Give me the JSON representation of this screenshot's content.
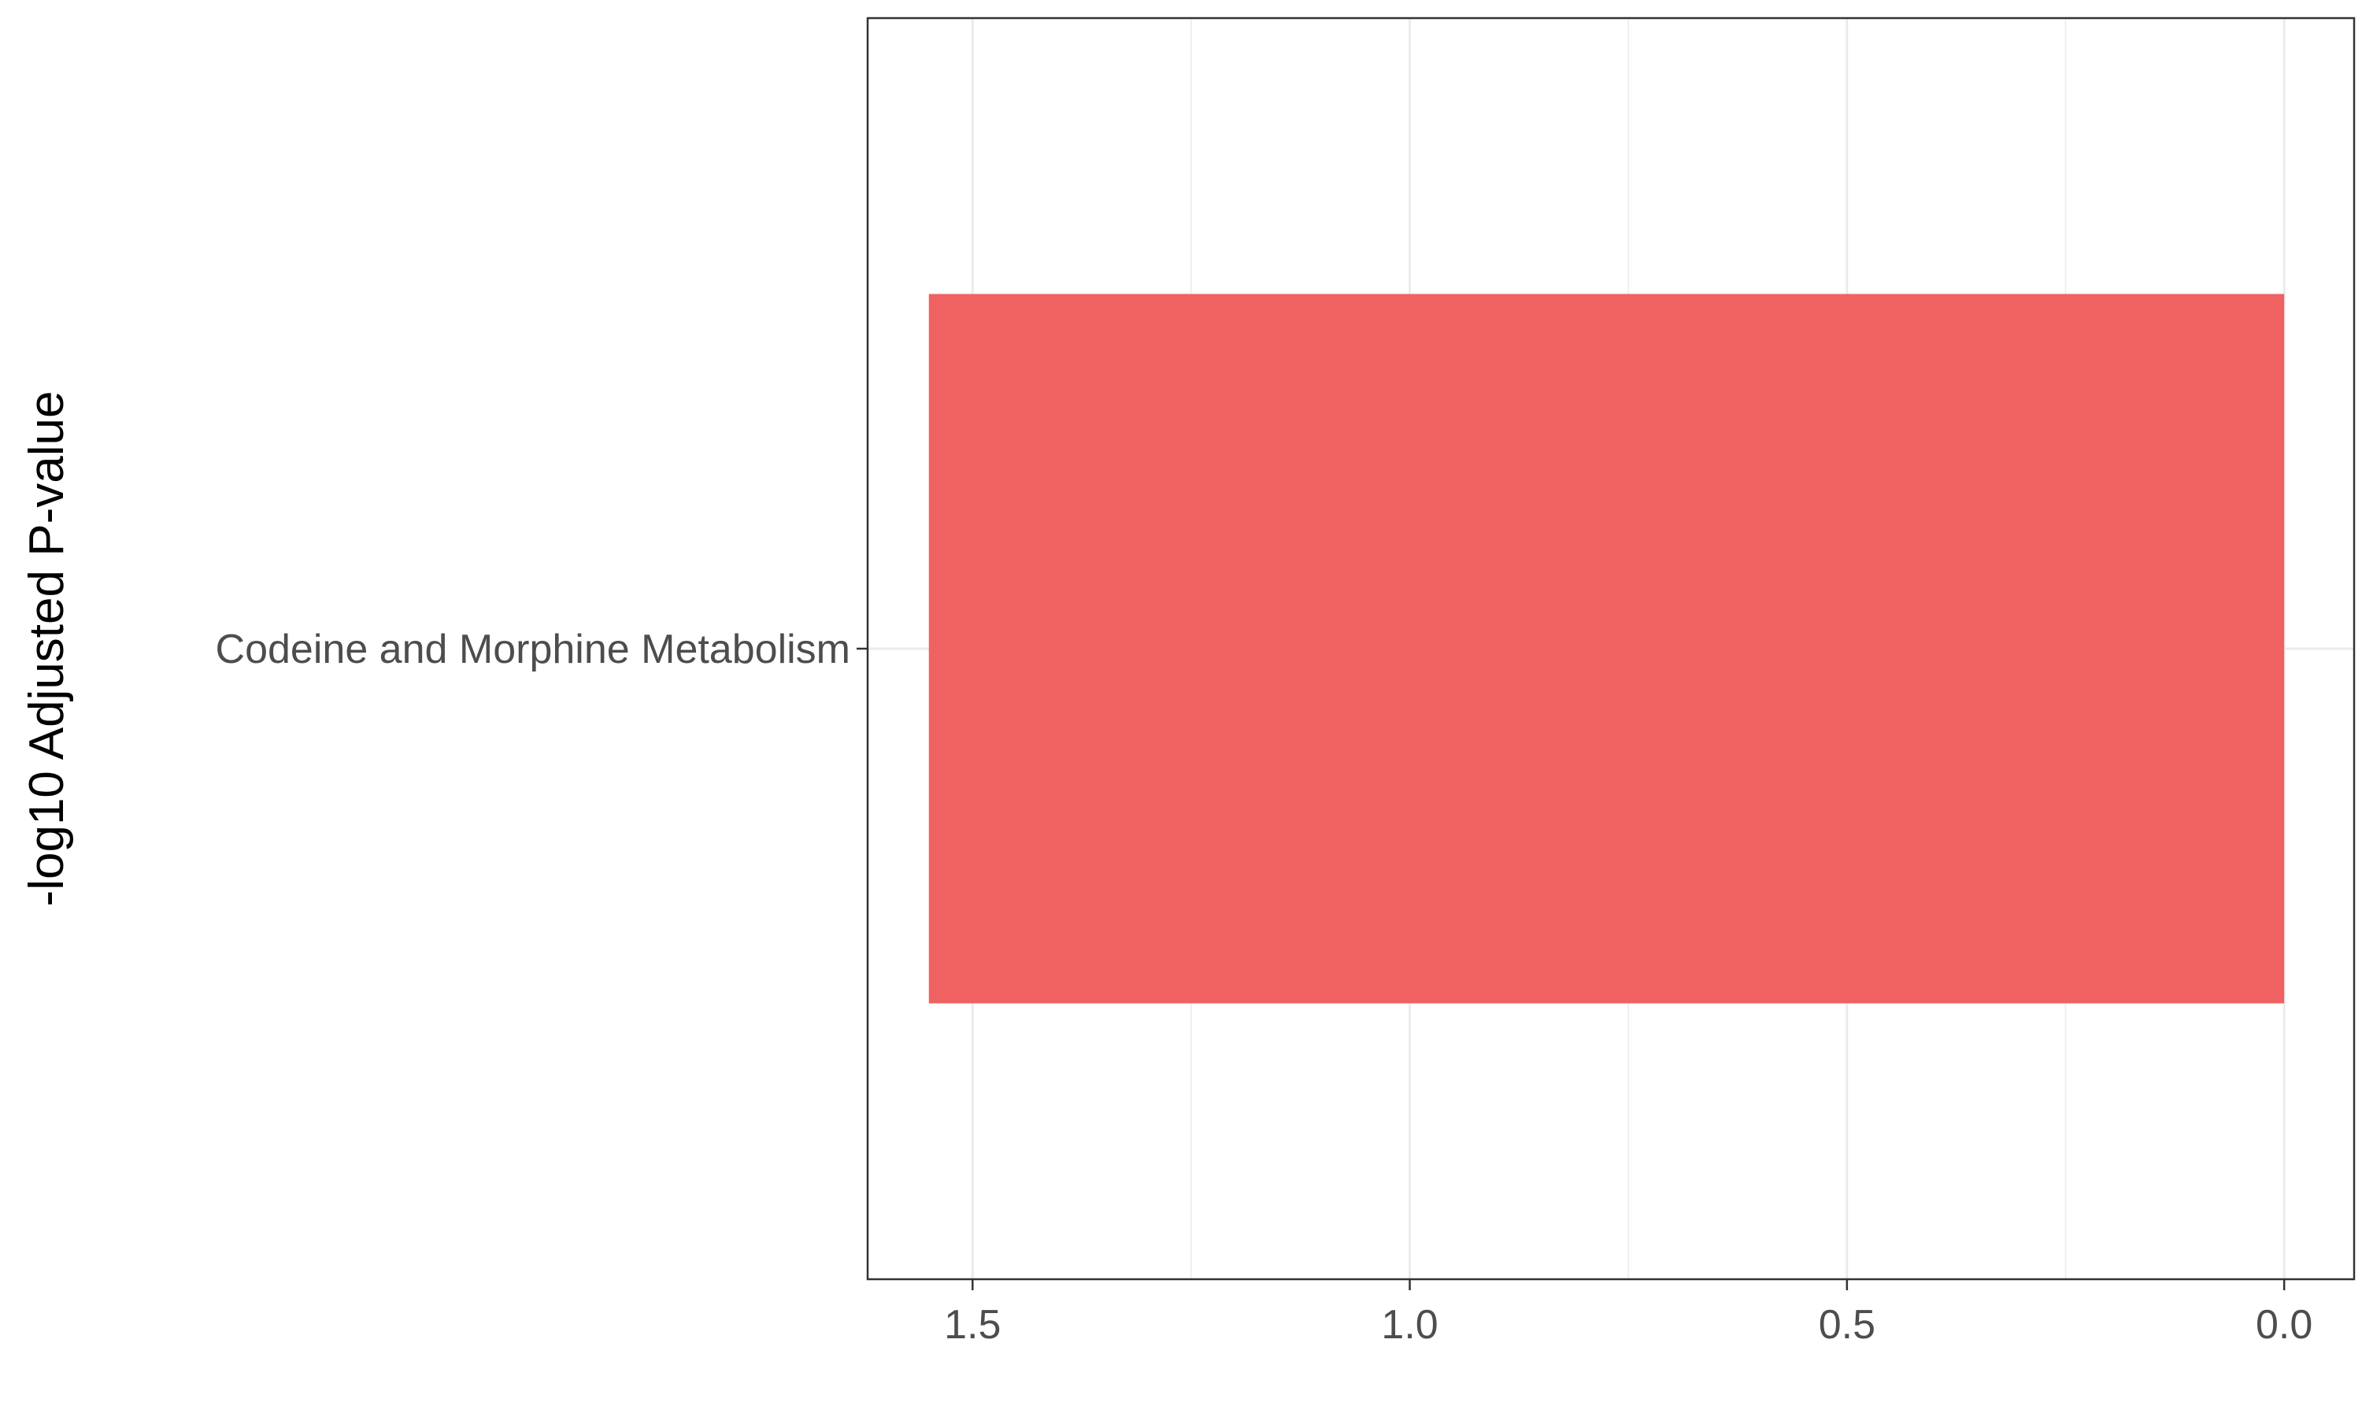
{
  "chart_data": {
    "type": "bar",
    "orientation": "horizontal",
    "categories": [
      "Codeine and Morphine Metabolism"
    ],
    "values": [
      1.55
    ],
    "xlabel": "",
    "ylabel": "-log10 Adjusted P-value",
    "xlim": [
      1.62,
      -0.08
    ],
    "x_reversed": true,
    "x_ticks": [
      1.5,
      1.0,
      0.5,
      0.0
    ],
    "x_tick_labels": [
      "1.5",
      "1.0",
      "0.5",
      "0.0"
    ],
    "x_minor_ticks": [
      1.25,
      0.75,
      0.25
    ],
    "grid": true,
    "legend": "none",
    "bar_color": "#f06161"
  }
}
